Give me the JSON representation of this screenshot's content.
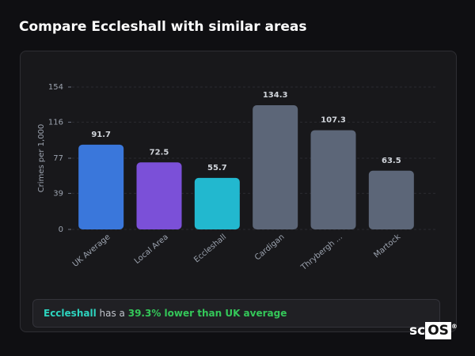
{
  "header": {
    "title": "Compare Eccleshall with similar areas"
  },
  "chart_data": {
    "type": "bar",
    "y_label": "Crimes per 1,000",
    "categories": [
      "UK Average",
      "Local Area",
      "Eccleshall",
      "Cardigan",
      "Thrybergh ...",
      "Martock"
    ],
    "values": [
      91.7,
      72.5,
      55.7,
      134.3,
      107.3,
      63.5
    ],
    "colors": [
      "#3a77db",
      "#7b50d8",
      "#22b8cf",
      "#5c6678",
      "#5c6678",
      "#5c6678"
    ],
    "ylim": [
      0,
      154
    ],
    "yticks": [
      0,
      39,
      77,
      116,
      154
    ],
    "grid": true
  },
  "summary": {
    "area": "Eccleshall",
    "text": "has a",
    "highlight": "39.3% lower than UK average"
  },
  "logo": {
    "sc": "sc",
    "os": "OS",
    "mark": "®"
  }
}
